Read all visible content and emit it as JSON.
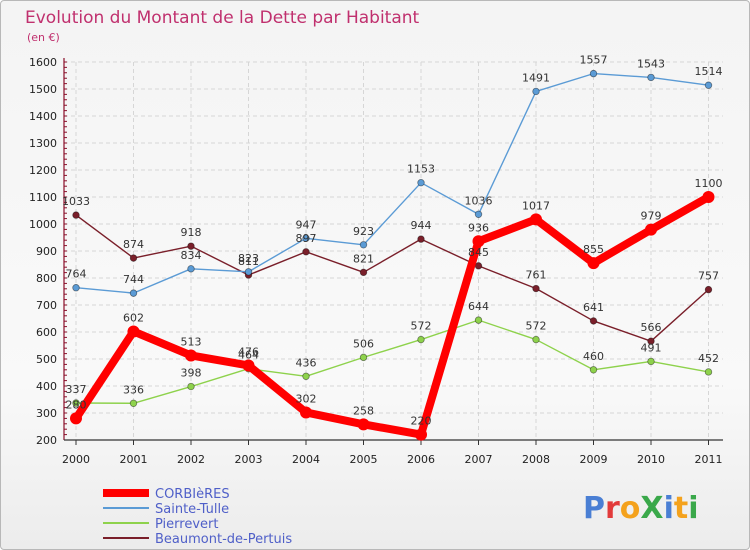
{
  "chart_data": {
    "type": "line",
    "title": "Evolution du Montant de la Dette par Habitant",
    "subtitle": "(en €)",
    "xlabel": "",
    "ylabel": "",
    "ylim": [
      200,
      1600
    ],
    "yticks": [
      200,
      300,
      400,
      500,
      600,
      700,
      800,
      900,
      1000,
      1100,
      1200,
      1300,
      1400,
      1500,
      1600
    ],
    "grid": true,
    "legend_position": "bottom-left",
    "x": [
      "2000",
      "2001",
      "2002",
      "2003",
      "2004",
      "2005",
      "2006",
      "2007",
      "2008",
      "2009",
      "2010",
      "2011"
    ],
    "series": [
      {
        "name": "Beaumont-de-Pertuis",
        "color": "#7a1f2a",
        "values": [
          1033,
          874,
          918,
          811,
          897,
          821,
          944,
          845,
          761,
          641,
          566,
          757
        ]
      },
      {
        "name": "Pierrevert",
        "color": "#8ed24c",
        "values": [
          337,
          336,
          398,
          464,
          436,
          506,
          572,
          644,
          572,
          460,
          491,
          452
        ]
      },
      {
        "name": "Sainte-Tulle",
        "color": "#5b9bd5",
        "values": [
          764,
          744,
          834,
          823,
          947,
          923,
          1153,
          1036,
          1491,
          1557,
          1543,
          1514
        ]
      },
      {
        "name": "CORBIèRES",
        "color": "#ff0000",
        "values": [
          280,
          602,
          513,
          476,
          302,
          258,
          220,
          936,
          1017,
          855,
          979,
          1100
        ]
      }
    ],
    "legend_order": [
      "CORBIèRES",
      "Sainte-Tulle",
      "Pierrevert",
      "Beaumont-de-Pertuis"
    ]
  },
  "logo": {
    "text": "ProXiti",
    "letter_colors": [
      "#4a7fd4",
      "#e23b3b",
      "#f4a21d",
      "#3aa84a",
      "#4a7fd4",
      "#f4a21d",
      "#3aa84a"
    ]
  }
}
